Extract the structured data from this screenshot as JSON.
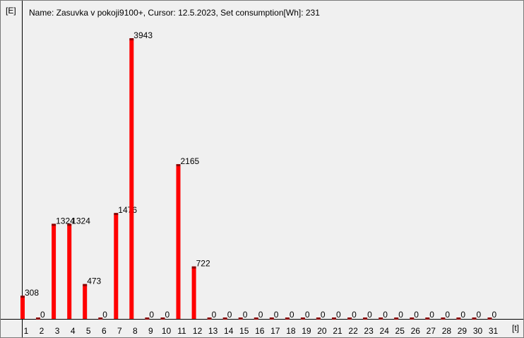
{
  "header": {
    "text": "Name: Zasuvka v pokoji9100+, Cursor: 12.5.2023, Set consumption[Wh]: 231"
  },
  "chart_data": {
    "type": "bar",
    "ylabel": "[E]",
    "xlabel": "[t]",
    "categories": [
      "1",
      "2",
      "3",
      "4",
      "5",
      "6",
      "7",
      "8",
      "9",
      "10",
      "11",
      "12",
      "13",
      "14",
      "15",
      "16",
      "17",
      "18",
      "19",
      "20",
      "21",
      "22",
      "23",
      "24",
      "25",
      "26",
      "27",
      "28",
      "29",
      "30",
      "31"
    ],
    "values": [
      308,
      0,
      1324,
      1324,
      473,
      0,
      1476,
      3943,
      0,
      0,
      2165,
      722,
      0,
      0,
      0,
      0,
      0,
      0,
      0,
      0,
      0,
      0,
      0,
      0,
      0,
      0,
      0,
      0,
      0,
      0,
      0
    ],
    "ylim": [
      0,
      4000
    ],
    "grid": false,
    "bar_color": "#ff0000",
    "cap_color": "#8b0000"
  }
}
